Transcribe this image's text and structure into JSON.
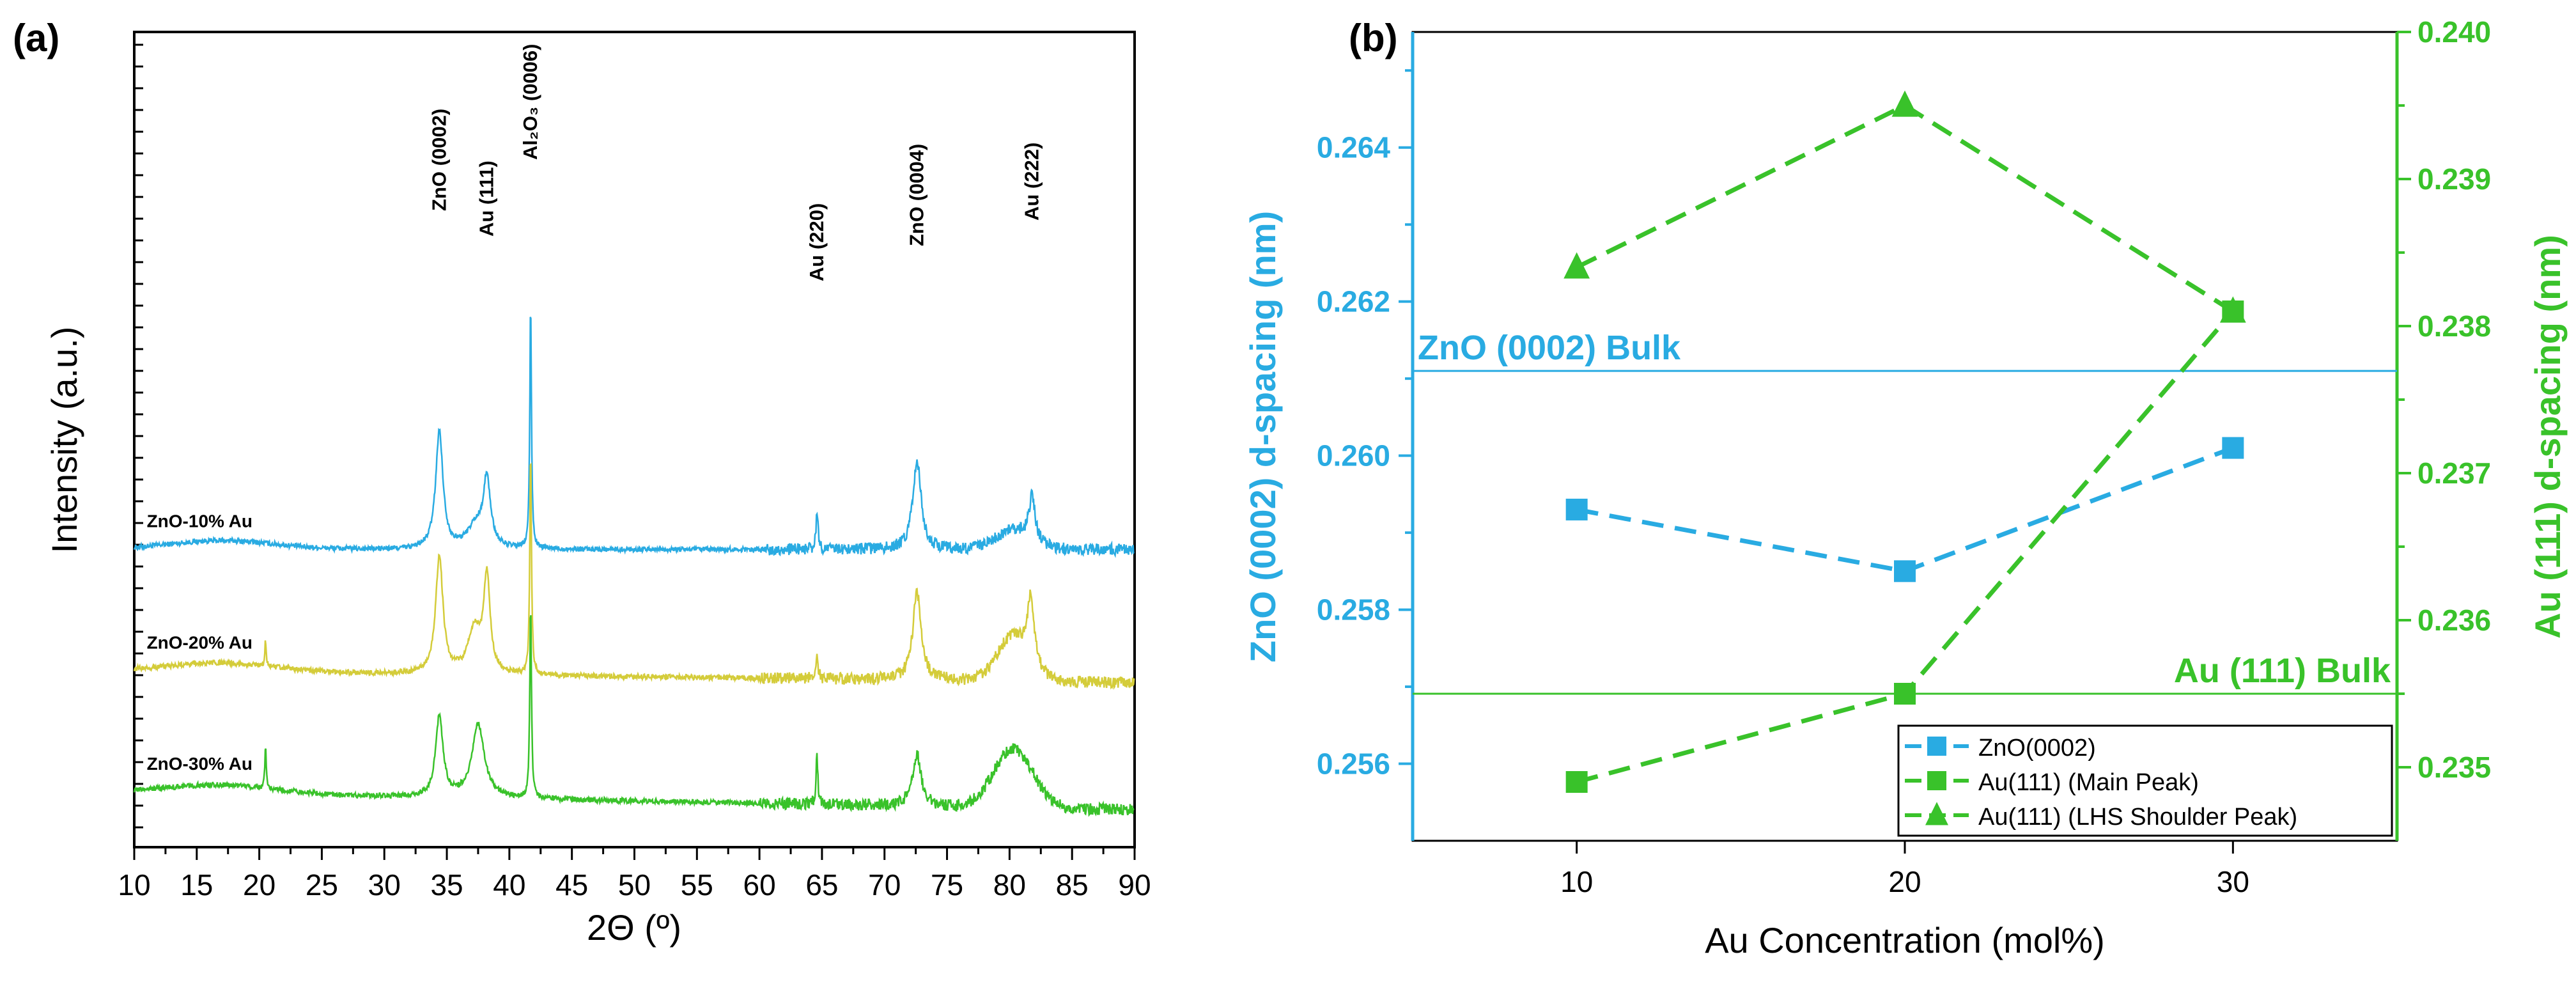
{
  "chart_data": [
    {
      "panel": "(a)",
      "type": "line",
      "title": "",
      "xlabel": "2Θ (º)",
      "ylabel": "Intensity (a.u.)",
      "xlim": [
        10,
        90
      ],
      "xticks": [
        "10",
        "15",
        "20",
        "25",
        "30",
        "35",
        "40",
        "45",
        "50",
        "55",
        "60",
        "65",
        "70",
        "75",
        "80",
        "85",
        "90"
      ],
      "grid": false,
      "series": [
        {
          "name": "ZnO-10% Au",
          "color": "#29ABE2",
          "baseline": 3.7,
          "slope": 0.0,
          "broad_hump": {
            "center": 80.3,
            "height": 0.25,
            "width": 2.0
          },
          "peaks": [
            {
              "x": 34.4,
              "h": 1.6,
              "w": 0.35
            },
            {
              "x": 37.3,
              "h": 0.3,
              "w": 0.8
            },
            {
              "x": 38.2,
              "h": 0.9,
              "w": 0.35
            },
            {
              "x": 41.7,
              "h": 3.3,
              "w": 0.08
            },
            {
              "x": 64.6,
              "h": 0.5,
              "w": 0.1
            },
            {
              "x": 72.6,
              "h": 1.2,
              "w": 0.4
            },
            {
              "x": 81.8,
              "h": 0.6,
              "w": 0.3
            }
          ]
        },
        {
          "name": "ZnO-20% Au",
          "color": "#D4CC3A",
          "baseline": 2.05,
          "slope": -0.002,
          "broad_hump": {
            "center": 80.3,
            "height": 0.6,
            "width": 1.8
          },
          "peaks": [
            {
              "x": 20.5,
              "h": 0.35,
              "w": 0.06
            },
            {
              "x": 34.4,
              "h": 1.6,
              "w": 0.35
            },
            {
              "x": 37.2,
              "h": 0.6,
              "w": 0.6
            },
            {
              "x": 38.2,
              "h": 1.3,
              "w": 0.3
            },
            {
              "x": 41.7,
              "h": 3.0,
              "w": 0.08
            },
            {
              "x": 64.6,
              "h": 0.35,
              "w": 0.1
            },
            {
              "x": 72.6,
              "h": 1.2,
              "w": 0.4
            },
            {
              "x": 81.7,
              "h": 0.9,
              "w": 0.3
            }
          ]
        },
        {
          "name": "ZnO-30% Au",
          "color": "#39C22A",
          "baseline": 0.4,
          "slope": -0.003,
          "broad_hump": {
            "center": 80.3,
            "height": 0.8,
            "width": 2.2
          },
          "peaks": [
            {
              "x": 20.5,
              "h": 0.6,
              "w": 0.06
            },
            {
              "x": 34.4,
              "h": 1.1,
              "w": 0.35
            },
            {
              "x": 37.5,
              "h": 1.0,
              "w": 0.6
            },
            {
              "x": 41.7,
              "h": 2.6,
              "w": 0.08
            },
            {
              "x": 64.6,
              "h": 0.7,
              "w": 0.08
            },
            {
              "x": 72.6,
              "h": 0.7,
              "w": 0.4
            }
          ]
        }
      ],
      "peak_labels": [
        {
          "text": "ZnO (0002)",
          "x": 34.4
        },
        {
          "text": "Au (111)",
          "x": 38.2
        },
        {
          "text": "Al₂O₃ (0006)",
          "x": 41.7
        },
        {
          "text": "Au (220)",
          "x": 64.6
        },
        {
          "text": "ZnO (0004)",
          "x": 72.6
        },
        {
          "text": "Au (222)",
          "x": 81.8
        }
      ]
    },
    {
      "panel": "(b)",
      "type": "line",
      "xlabel": "Au Concentration (mol%)",
      "ylabel_left": "ZnO (0002) d-spacing (nm)",
      "ylabel_right": "Au (111) d-spacing (nm)",
      "xlim": [
        5,
        35
      ],
      "xticks": [
        "10",
        "20",
        "30"
      ],
      "ylim_left": [
        0.255,
        0.2655
      ],
      "yticks_left": [
        "0.256",
        "0.258",
        "0.260",
        "0.262",
        "0.264"
      ],
      "ylim_right": [
        0.2345,
        0.24
      ],
      "yticks_right": [
        "0.235",
        "0.236",
        "0.237",
        "0.238",
        "0.239",
        "0.240"
      ],
      "grid": false,
      "legend_position": "bottom-right",
      "series": [
        {
          "name": "ZnO(0002)",
          "axis": "left",
          "marker": "square",
          "color": "#29ABE2",
          "x": [
            10,
            20,
            30
          ],
          "y": [
            0.2593,
            0.2585,
            0.2601
          ]
        },
        {
          "name": "Au(111) (Main Peak)",
          "axis": "right",
          "marker": "square",
          "color": "#39C22A",
          "x": [
            10,
            20,
            30
          ],
          "y": [
            0.2349,
            0.2355,
            0.2381
          ]
        },
        {
          "name": "Au(111) (LHS Shoulder Peak)",
          "axis": "right",
          "marker": "triangle",
          "color": "#39C22A",
          "x": [
            10,
            20,
            30
          ],
          "y": [
            0.2384,
            0.2395,
            0.2381
          ]
        }
      ],
      "reference_lines": [
        {
          "label": "ZnO (0002) Bulk",
          "axis": "left",
          "value": 0.2611,
          "color": "#29ABE2"
        },
        {
          "label": "Au (111) Bulk",
          "axis": "right",
          "value": 0.2355,
          "color": "#39C22A"
        }
      ]
    }
  ]
}
